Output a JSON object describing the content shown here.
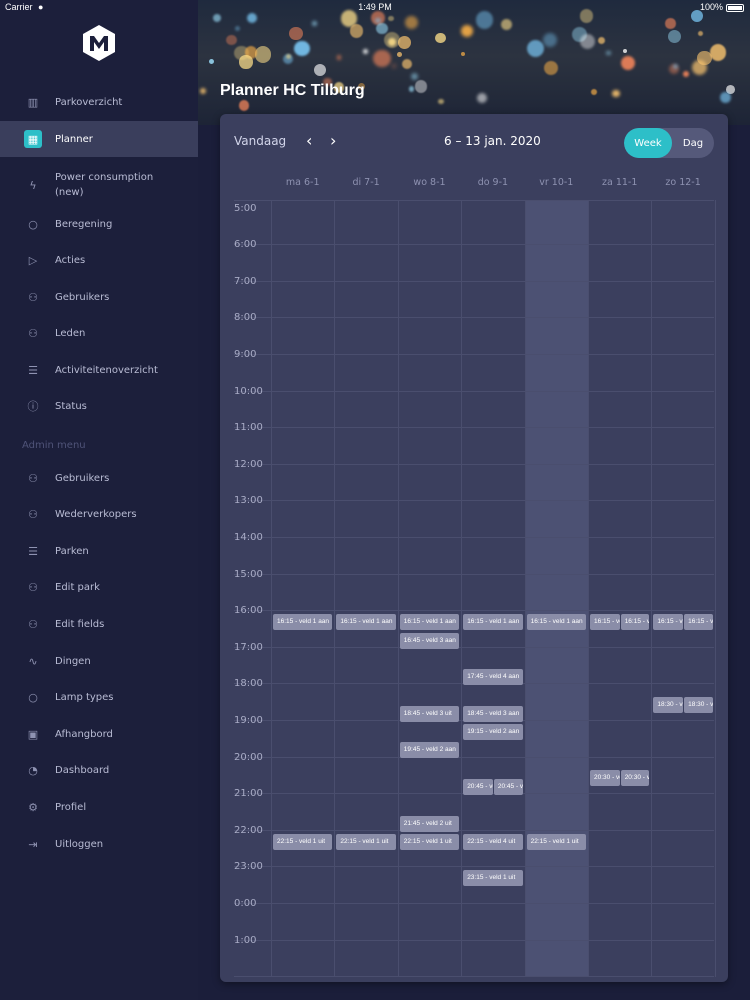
{
  "status_bar": {
    "carrier": "Carrier",
    "time": "1:49 PM",
    "battery": "100%"
  },
  "sidebar": {
    "items": [
      {
        "label": "Parkoverzicht",
        "icon": "map-icon",
        "active": false
      },
      {
        "label": "Planner",
        "icon": "calendar-icon",
        "active": true
      },
      {
        "label": "Power consumption (new)",
        "icon": "lightning-icon",
        "active": false
      },
      {
        "label": "Beregening",
        "icon": "droplet-icon",
        "active": false
      },
      {
        "label": "Acties",
        "icon": "play-circle-icon",
        "active": false
      },
      {
        "label": "Gebruikers",
        "icon": "users-icon",
        "active": false
      },
      {
        "label": "Leden",
        "icon": "users-icon",
        "active": false
      },
      {
        "label": "Activiteitenoverzicht",
        "icon": "list-icon",
        "active": false
      },
      {
        "label": "Status",
        "icon": "info-icon",
        "active": false
      }
    ],
    "admin_heading": "Admin menu",
    "admin_items": [
      {
        "label": "Gebruikers",
        "icon": "users-cog-icon"
      },
      {
        "label": "Wederverkopers",
        "icon": "users-group-icon"
      },
      {
        "label": "Parken",
        "icon": "list-icon"
      },
      {
        "label": "Edit park",
        "icon": "users-cog-icon"
      },
      {
        "label": "Edit fields",
        "icon": "users-cog-icon"
      },
      {
        "label": "Dingen",
        "icon": "wave-icon"
      },
      {
        "label": "Lamp types",
        "icon": "bulb-icon"
      },
      {
        "label": "Afhangbord",
        "icon": "badge-icon"
      },
      {
        "label": "Dashboard",
        "icon": "gauge-icon"
      },
      {
        "label": "Profiel",
        "icon": "gear-icon"
      },
      {
        "label": "Uitloggen",
        "icon": "logout-icon"
      }
    ]
  },
  "header": {
    "title": "Planner HC Tilburg"
  },
  "planner": {
    "today_label": "Vandaag",
    "prev_icon": "chevron-left-icon",
    "next_icon": "chevron-right-icon",
    "date_range": "6 – 13 jan. 2020",
    "view_week": "Week",
    "view_day": "Dag",
    "active_view": "Week",
    "days": [
      "ma 6-1",
      "di 7-1",
      "wo 8-1",
      "do 9-1",
      "vr 10-1",
      "za 11-1",
      "zo 12-1"
    ],
    "highlighted_day": "vr 10-1",
    "hours": [
      "5:00",
      "6:00",
      "7:00",
      "8:00",
      "9:00",
      "10:00",
      "11:00",
      "12:00",
      "13:00",
      "14:00",
      "15:00",
      "16:00",
      "17:00",
      "18:00",
      "19:00",
      "20:00",
      "21:00",
      "22:00",
      "23:00",
      "0:00",
      "1:00"
    ],
    "events": [
      {
        "day": 0,
        "time": "16:15",
        "text": "16:15 - veld 1 aan",
        "span": "full"
      },
      {
        "day": 1,
        "time": "16:15",
        "text": "16:15 - veld 1 aan",
        "span": "full"
      },
      {
        "day": 2,
        "time": "16:15",
        "text": "16:15 - veld 1 aan",
        "span": "full"
      },
      {
        "day": 3,
        "time": "16:15",
        "text": "16:15 - veld 1 aan",
        "span": "full"
      },
      {
        "day": 4,
        "time": "16:15",
        "text": "16:15 - veld 1 aan",
        "span": "full"
      },
      {
        "day": 5,
        "time": "16:15",
        "text": "16:15 - ve",
        "span": "left"
      },
      {
        "day": 5,
        "time": "16:15",
        "text": "16:15 - ve",
        "span": "right"
      },
      {
        "day": 6,
        "time": "16:15",
        "text": "16:15 - ve",
        "span": "left"
      },
      {
        "day": 6,
        "time": "16:15",
        "text": "16:15 - ve",
        "span": "right"
      },
      {
        "day": 2,
        "time": "16:45",
        "text": "16:45 - veld 3 aan",
        "span": "full"
      },
      {
        "day": 3,
        "time": "17:45",
        "text": "17:45 - veld 4 aan",
        "span": "full"
      },
      {
        "day": 6,
        "time": "18:30",
        "text": "18:30 - ve",
        "span": "left"
      },
      {
        "day": 6,
        "time": "18:30",
        "text": "18:30 - ve",
        "span": "right"
      },
      {
        "day": 2,
        "time": "18:45",
        "text": "18:45 - veld 3 uit",
        "span": "full"
      },
      {
        "day": 3,
        "time": "18:45",
        "text": "18:45 - veld 3 aan",
        "span": "full"
      },
      {
        "day": 3,
        "time": "19:15",
        "text": "19:15 - veld 2 aan",
        "span": "full"
      },
      {
        "day": 2,
        "time": "19:45",
        "text": "19:45 - veld 2 aan",
        "span": "full"
      },
      {
        "day": 5,
        "time": "20:30",
        "text": "20:30 - ve",
        "span": "left"
      },
      {
        "day": 5,
        "time": "20:30",
        "text": "20:30 - ve",
        "span": "right"
      },
      {
        "day": 3,
        "time": "20:45",
        "text": "20:45 - ve",
        "span": "left"
      },
      {
        "day": 3,
        "time": "20:45",
        "text": "20:45 - ve",
        "span": "right"
      },
      {
        "day": 2,
        "time": "21:45",
        "text": "21:45 - veld 2 uit",
        "span": "full"
      },
      {
        "day": 0,
        "time": "22:15",
        "text": "22:15 - veld 1 uit",
        "span": "full"
      },
      {
        "day": 1,
        "time": "22:15",
        "text": "22:15 - veld 1 uit",
        "span": "full"
      },
      {
        "day": 2,
        "time": "22:15",
        "text": "22:15 - veld 1 uit",
        "span": "full"
      },
      {
        "day": 3,
        "time": "22:15",
        "text": "22:15 - veld 4 uit",
        "span": "full"
      },
      {
        "day": 4,
        "time": "22:15",
        "text": "22:15 - veld 1 uit",
        "span": "full"
      },
      {
        "day": 3,
        "time": "23:15",
        "text": "23:15 - veld 1 uit",
        "span": "full"
      }
    ]
  },
  "colors": {
    "accent": "#2dbfc8",
    "sidebar_bg": "#1c1f3b",
    "card_bg": "#3b3f5e",
    "event_bg": "#8a8da8"
  }
}
